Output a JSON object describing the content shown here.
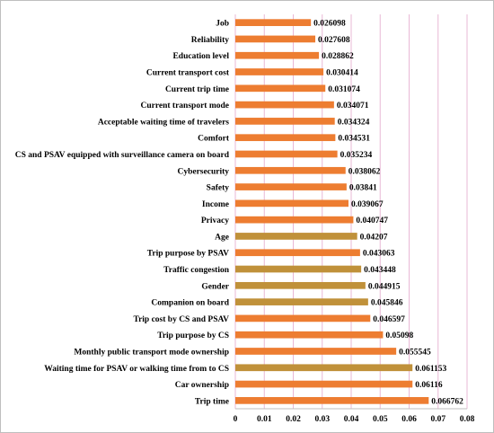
{
  "chart_data": {
    "type": "bar",
    "orientation": "horizontal",
    "categories": [
      "Job",
      "Reliability",
      "Education level",
      "Current transport cost",
      "Current trip time",
      "Current transport mode",
      "Acceptable waiting time of travelers",
      "Comfort",
      "CS and PSAV equipped with surveillance camera on board",
      "Cybersecurity",
      "Safety",
      "Income",
      "Privacy",
      "Age",
      "Trip purpose by PSAV",
      "Traffic congestion",
      "Gender",
      "Companion on board",
      "Trip cost by CS and PSAV",
      "Trip purpose by CS",
      "Monthly public transport mode ownership",
      "Waiting time for PSAV or  walking time from to CS",
      "Car ownership",
      "Trip time"
    ],
    "values": [
      0.026098,
      0.027608,
      0.028862,
      0.030414,
      0.031074,
      0.034071,
      0.034324,
      0.034531,
      0.035234,
      0.038062,
      0.03841,
      0.039067,
      0.040747,
      0.04207,
      0.043063,
      0.043448,
      0.044915,
      0.045846,
      0.046597,
      0.05098,
      0.055545,
      0.061153,
      0.06116,
      0.066762
    ],
    "data_labels": [
      "0.026098",
      "0.027608",
      "0.028862",
      "0.030414",
      "0.031074",
      "0.034071",
      "0.034324",
      "0.034531",
      "0.035234",
      "0.038062",
      "0.03841",
      "0.039067",
      "0.040747",
      "0.04207",
      "0.043063",
      "0.043448",
      "0.044915",
      "0.045846",
      "0.046597",
      "0.05098",
      "0.055545",
      "0.061153",
      "0.06116",
      "0.066762"
    ],
    "bar_colors": [
      "#ED7D31",
      "#ED7D31",
      "#ED7D31",
      "#ED7D31",
      "#ED7D31",
      "#ED7D31",
      "#ED7D31",
      "#ED7D31",
      "#ED7D31",
      "#ED7D31",
      "#ED7D31",
      "#ED7D31",
      "#ED7D31",
      "#C0913A",
      "#ED7D31",
      "#C0913A",
      "#C0913A",
      "#C0913A",
      "#ED7D31",
      "#ED7D31",
      "#ED7D31",
      "#C0913A",
      "#ED7D31",
      "#ED7D31"
    ],
    "xlim": [
      0,
      0.08
    ],
    "x_ticks": [
      "0",
      "0.01",
      "0.02",
      "0.03",
      "0.04",
      "0.05",
      "0.06",
      "0.07",
      "0.08"
    ],
    "gridlines": "vertical",
    "gridline_color": "#E9B8D6",
    "title": "",
    "xlabel": "",
    "ylabel": "",
    "legend": "none"
  }
}
